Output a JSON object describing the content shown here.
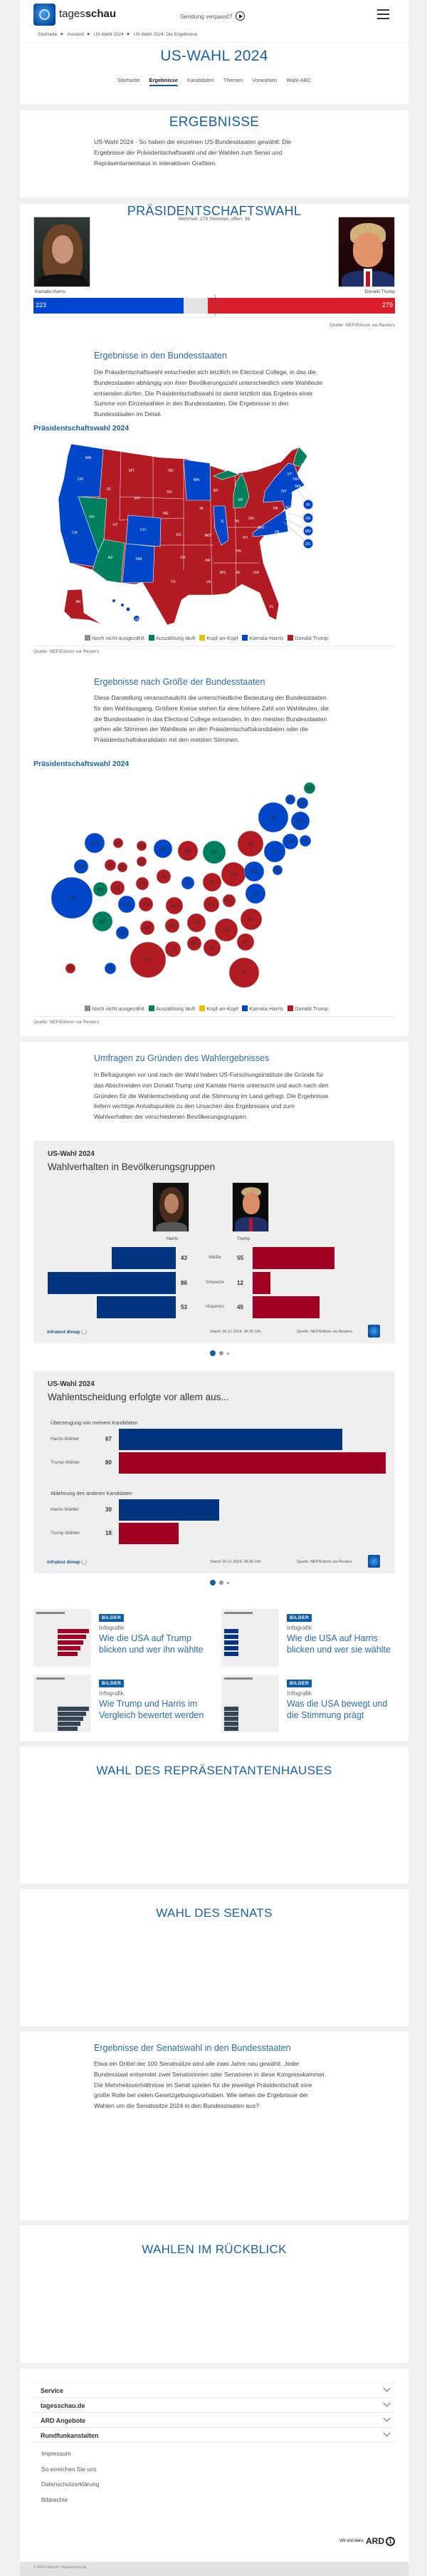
{
  "header": {
    "logo_text_regular": "tages",
    "logo_text_bold": "schau",
    "missed_show": "Sendung verpasst?",
    "breadcrumb": [
      "Startseite",
      "Ausland",
      "US-Wahl 2024",
      "US-Wahl 2024: Die Ergebnisse"
    ],
    "title": "US-WAHL 2024",
    "tabs": [
      {
        "label": "Startseite",
        "active": false
      },
      {
        "label": "Ergebnisse",
        "active": true
      },
      {
        "label": "Kandidaten",
        "active": false
      },
      {
        "label": "Themen",
        "active": false
      },
      {
        "label": "Vorwahlen",
        "active": false
      },
      {
        "label": "Wahl-ABC",
        "active": false
      }
    ]
  },
  "intro": {
    "heading": "ERGEBNISSE",
    "text": "US-Wahl 2024 - So haben die einzelnen US-Bundesstaaten gewählt: Die Ergebnisse der Präsidentschaftswahl und der Wahlen zum Senat und Repräsentantenhaus in interaktiven Grafiken."
  },
  "president": {
    "heading": "PRÄSIDENTSCHAFTSWAHL",
    "majority_note": "Mehrheit: 270 Stimmen, offen: 36",
    "majority": 270,
    "open": 36,
    "harris": {
      "name": "Kamala Harris",
      "votes": 223
    },
    "trump": {
      "name": "Donald Trump",
      "votes": 279
    },
    "source": "Quelle: NEP/Edison via Reuters",
    "states_section": {
      "heading": "Ergebnisse in den Bundesstaaten",
      "text": "Die Präsidentschaftswahl entscheidet sich letztlich im Electoral College, in das die Bundesstaaten abhängig von ihrer Bevölkerungszahl unterschiedlich viele Wahlleute entsenden dürfen. Die Präsidentschaftswahl ist damit letztlich das Ergebnis einer Summe von Einzelwahlen in den Bundesstaaten. Die Ergebnisse in den Bundesstaaten im Detail.",
      "chart_title": "Präsidentschaftswahl 2024",
      "source": "Quelle: NEP/Edison via Reuters"
    },
    "size_section": {
      "heading": "Ergebnisse nach Größe der Bundesstaaten",
      "text": "Diese Darstellung veranschaulicht die unterschiedliche Bedeutung der Bundesstaaten für den Wahlausgang. Größere Kreise stehen für eine höhere Zahl von Wahlleuten, die die Bundesstaaten in das Electoral College entsenden. In den meisten Bundesstaaten gehen alle Stimmen der Wahlleute an den Präsidentschaftskandidaten oder die Präsidentschaftskandidatin mit den meisten Stimmen.",
      "chart_title": "Präsidentschaftswahl 2024",
      "source": "Quelle: NEP/Edison via Reuters"
    },
    "legend": [
      {
        "label": "Noch nicht ausgezählt",
        "color": "#8e8e8e"
      },
      {
        "label": "Auszählung läuft",
        "color": "#007f5f"
      },
      {
        "label": "Kopf-an-Kopf",
        "color": "#e8c200"
      },
      {
        "label": "Kamala Harris",
        "color": "#0046c8"
      },
      {
        "label": "Donald Trump",
        "color": "#b31b22"
      }
    ]
  },
  "states": {
    "harris": [
      "WA",
      "OR",
      "CA",
      "CO",
      "NM",
      "MN",
      "IL",
      "NY",
      "VT",
      "NH",
      "MA",
      "CT",
      "RI",
      "NJ",
      "DE",
      "MD",
      "VA",
      "HI",
      "DC"
    ],
    "counting": [
      "NV",
      "AZ",
      "MI",
      "ME"
    ],
    "trump": [
      "MT",
      "ID",
      "WY",
      "UT",
      "ND",
      "SD",
      "NE",
      "KS",
      "OK",
      "TX",
      "IA",
      "MO",
      "AR",
      "LA",
      "WI",
      "IN",
      "OH",
      "KY",
      "TN",
      "MS",
      "AL",
      "GA",
      "FL",
      "SC",
      "NC",
      "WV",
      "PA",
      "AK"
    ]
  },
  "colors": {
    "harris": "#0046c8",
    "trump": "#b31b22",
    "counting": "#007f5f",
    "harris_bar": "#0046d0",
    "trump_bar": "#d81f2a",
    "survey_blue": "#033480",
    "survey_red": "#a00022",
    "accent": "#19619f"
  },
  "surveys": {
    "heading": "Umfragen zu Gründen des Wahlergebnisses",
    "text": "In Befragungen vor und nach der Wahl haben US-Forschungsinstitute die Gründe für das Abschneiden von Donald Trump und Kamala Harris untersucht und auch nach den Gründen für die Wahlentscheidung und die Stimmung im Land gefragt. Die Ergebnisse liefern wichtige Anhaltspunkte zu den Ursachen des Ergebnisses und zum Wahlverhalten der verschiedenen Bevölkerungsgruppen.",
    "kicker": "US-Wahl 2024",
    "provider": "infratest dimap",
    "stand": "Stand:  06.11.2024, 06:35 Uhr",
    "source": "Quelle: NEP/Edison via Reuters",
    "carousel_pages": 3,
    "carousel_active": 1
  },
  "chart_data": [
    {
      "type": "bar",
      "title": "Wahlverhalten in Bevölkerungsgruppen",
      "categories": [
        "Weiße",
        "Schwarze",
        "Hispanics"
      ],
      "series": [
        {
          "name": "Harris",
          "values": [
            43,
            86,
            53
          ]
        },
        {
          "name": "Trump",
          "values": [
            55,
            12,
            45
          ]
        }
      ]
    },
    {
      "type": "bar",
      "title": "Wahlentscheidung erfolgte vor allem aus...",
      "groups": [
        {
          "label": "Überzeugung von meinem Kandidaten",
          "categories": [
            "Harris-Wähler",
            "Trump-Wähler"
          ],
          "values": [
            67,
            80
          ]
        },
        {
          "label": "Ablehnung des anderen Kandidaten",
          "categories": [
            "Harris-Wähler",
            "Trump-Wähler"
          ],
          "values": [
            30,
            18
          ]
        }
      ]
    }
  ],
  "teasers": [
    {
      "badge": "BILDER",
      "kicker": "Infografik",
      "title": "Wie die USA auf Trump blicken und wer ihn wählte"
    },
    {
      "badge": "BILDER",
      "kicker": "Infografik",
      "title": "Wie die USA auf Harris blicken und wer sie wählte"
    },
    {
      "badge": "BILDER",
      "kicker": "Infografik",
      "title": "Wie Trump und Harris im Vergleich bewertet werden"
    },
    {
      "badge": "BILDER",
      "kicker": "Infografik",
      "title": "Was die USA bewegt und die Stimmung prägt"
    }
  ],
  "house": {
    "heading": "WAHL DES REPRÄSENTANTENHAUSES"
  },
  "senate": {
    "heading": "WAHL DES SENATS",
    "sub_heading": "Ergebnisse der Senatswahl in den Bundesstaaten",
    "text": "Etwa ein Drittel der 100 Senatssitze wird alle zwei Jahre neu gewählt. Jeder Bundesstaat entsendet zwei Senatorinnen oder Senatoren in diese Kongresskammer. Die Mehrheitsverhältnisse im Senat spielen für die jeweilige Präsidentschaft eine große Rolle bei vielen Gesetzgebungsvorhaben. Wie sehen die Ergebnisse der Wahlen um die Senatssitze 2024 in den Bundesstaaten aus?"
  },
  "review": {
    "heading": "WAHLEN IM RÜCKBLICK"
  },
  "footer": {
    "accordion": [
      "Service",
      "tagesschau.de",
      "ARD Angebote",
      "Rundfunkanstalten"
    ],
    "links": [
      "Impressum",
      "So erreichen Sie uns",
      "Datenschutzerklärung",
      "Bildrechte"
    ],
    "ard_claim": "Wir sind deins.",
    "ard_logo": "ARD",
    "copyright": "© ARD-aktuell / tagesschau.de"
  }
}
